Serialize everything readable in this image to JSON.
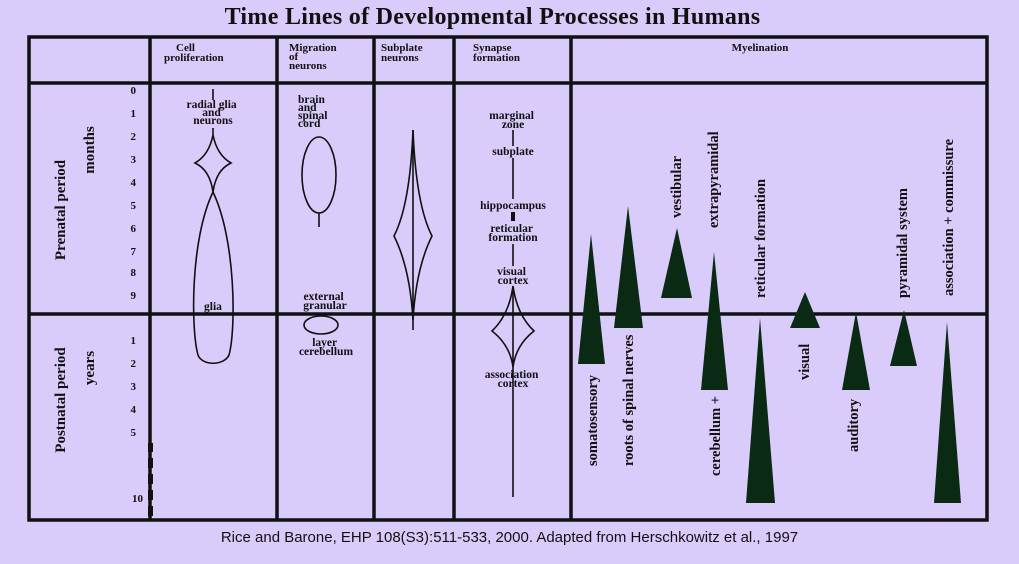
{
  "title": "Time Lines of Developmental Processes in Humans",
  "caption": "Rice and Barone, EHP 108(S3):511-533, 2000.  Adapted from Herschkowitz et al., 1997",
  "columns": {
    "cell_proliferation": [
      "Cell",
      "proliferation"
    ],
    "migration": [
      "Migration",
      "of",
      "neurons"
    ],
    "subplate": [
      "Subplate",
      "neurons"
    ],
    "synapse": [
      "Synapse",
      "formation"
    ],
    "myelination": "Myelination"
  },
  "periods": {
    "prenatal": "Prenatal period",
    "prenatal_unit": "months",
    "postnatal": "Postnatal period",
    "postnatal_unit": "years"
  },
  "ticks": {
    "prenatal": [
      "0",
      "1",
      "2",
      "3",
      "4",
      "5",
      "6",
      "7",
      "8",
      "9"
    ],
    "postnatal": [
      "1",
      "2",
      "3",
      "4",
      "5",
      "10"
    ]
  },
  "labels": {
    "radial_glia": [
      "radial glia",
      "and",
      "neurons"
    ],
    "glia": "glia",
    "brain_spinal": [
      "brain",
      "and",
      "spinal",
      "cord"
    ],
    "external_granular": [
      "external",
      "granular"
    ],
    "layer_cerebellum": [
      "layer",
      "cerebellum"
    ],
    "marginal_zone": [
      "marginal",
      "zone"
    ],
    "subplate": "subplate",
    "hippocampus": "hippocampus",
    "reticular_formation": [
      "reticular",
      "formation"
    ],
    "visual_cortex": [
      "visual",
      "cortex"
    ],
    "association_cortex": [
      "association",
      "cortex"
    ]
  },
  "myelination": {
    "somatosensory": "somatosensory",
    "roots": "roots of spinal nerves",
    "vestibular": "vestibular",
    "extrapyramidal": "extrapyramidal",
    "cerebellum": "cerebellum +",
    "reticular": "reticular formation",
    "visual": "visual",
    "auditory": "auditory",
    "pyramidal": "pyramidal system",
    "association": "association + commissure"
  },
  "colors": {
    "background": "#d9ccfa",
    "ink": "#111111",
    "wedge": "#0a2a14"
  }
}
